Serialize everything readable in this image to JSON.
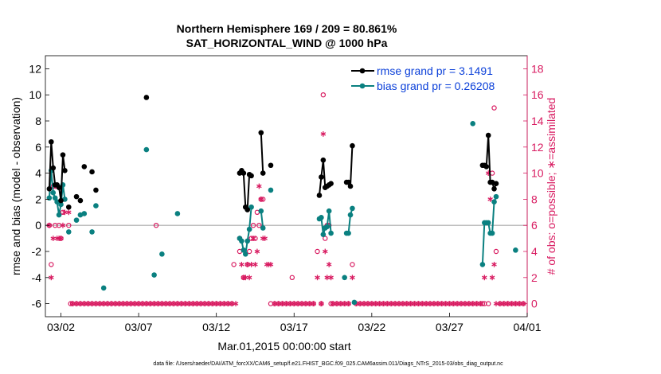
{
  "chart_data": {
    "type": "scatter",
    "title": "Northern Hemisphere 169 / 209 = 80.861%",
    "subtitle": "SAT_HORIZONTAL_WIND @ 1000 hPa",
    "xlabel": "Mar.01,2015 00:00:00 start",
    "ylabel": "rmse and bias (model - observation)",
    "ylabel_right": "# of obs: o=possible; ∗=assimilated",
    "footnote": "data file: /Users/raeder/DAI/ATM_forcXX/CAM6_setup/f.e21.FHIST_BGC.f09_025.CAM6assim.011/Diags_NTrS_2015-03/obs_diag_output.nc",
    "xlim": [
      0.5,
      31.5
    ],
    "ylim": [
      -7,
      13
    ],
    "ylim_right": [
      -1,
      19
    ],
    "x_ticks": [
      1.5,
      6.5,
      11.5,
      16.5,
      21.5,
      26.5,
      31.5
    ],
    "x_tick_labels": [
      "03/02",
      "03/07",
      "03/12",
      "03/17",
      "03/22",
      "03/27",
      "04/01"
    ],
    "y_ticks": [
      -6,
      -4,
      -2,
      0,
      2,
      4,
      6,
      8,
      10,
      12
    ],
    "y_ticks_right": [
      0,
      2,
      4,
      6,
      8,
      10,
      12,
      14,
      16,
      18
    ],
    "zero_line": 0,
    "grid": false,
    "legend": "top-right",
    "colors": {
      "rmse": "#000000",
      "bias": "#0a8080",
      "obs": "#d81a60",
      "zero": "#a8a8a8",
      "legend_text": "#0a3fd9"
    },
    "series": [
      {
        "name": "rmse grand pr = 3.1491",
        "color": "#000000",
        "segments": [
          [
            [
              0.75,
              2.8
            ],
            [
              0.875,
              6.4
            ],
            [
              1.0,
              4.4
            ],
            [
              1.125,
              3.1
            ],
            [
              1.25,
              3.1
            ],
            [
              1.375,
              2.9
            ],
            [
              1.5,
              1.9
            ],
            [
              1.625,
              5.4
            ],
            [
              1.75,
              4.2
            ]
          ],
          [
            [
              13.0,
              4.0
            ],
            [
              13.125,
              4.2
            ],
            [
              13.25,
              4.0
            ],
            [
              13.375,
              1.4
            ],
            [
              13.5,
              1.2
            ],
            [
              13.625,
              3.9
            ],
            [
              13.75,
              3.8
            ]
          ],
          [
            [
              14.375,
              7.1
            ],
            [
              14.5,
              4.0
            ]
          ],
          [
            [
              18.125,
              2.3
            ],
            [
              18.25,
              3.7
            ],
            [
              18.375,
              5.0
            ],
            [
              18.5,
              2.9
            ],
            [
              18.625,
              3.0
            ],
            [
              18.75,
              3.1
            ],
            [
              18.875,
              3.2
            ]
          ],
          [
            [
              19.875,
              3.3
            ],
            [
              20.0,
              3.3
            ],
            [
              20.125,
              3.0
            ],
            [
              20.25,
              6.1
            ]
          ],
          [
            [
              28.625,
              4.6
            ],
            [
              28.75,
              4.6
            ],
            [
              28.875,
              4.5
            ],
            [
              29.0,
              6.9
            ],
            [
              29.125,
              3.3
            ],
            [
              29.25,
              3.3
            ],
            [
              29.375,
              2.8
            ],
            [
              29.5,
              3.2
            ]
          ]
        ],
        "isolated": [
          [
            2.0,
            1.4
          ],
          [
            2.5,
            2.2
          ],
          [
            2.75,
            1.9
          ],
          [
            3.0,
            4.5
          ],
          [
            3.5,
            4.1
          ],
          [
            3.75,
            2.7
          ],
          [
            7.0,
            9.8
          ],
          [
            15.0,
            4.6
          ]
        ]
      },
      {
        "name": "bias grand pr = 0.26208",
        "color": "#0a8080",
        "segments": [
          [
            [
              0.75,
              2.1
            ],
            [
              0.875,
              4.2
            ],
            [
              1.0,
              2.5
            ],
            [
              1.125,
              2.1
            ],
            [
              1.25,
              1.8
            ],
            [
              1.375,
              0.8
            ],
            [
              1.5,
              1.6
            ],
            [
              1.625,
              3.1
            ],
            [
              1.75,
              2.0
            ]
          ],
          [
            [
              13.0,
              -1.0
            ],
            [
              13.125,
              -1.2
            ],
            [
              13.25,
              -1.9
            ],
            [
              13.375,
              -2.2
            ],
            [
              13.5,
              -1.2
            ],
            [
              13.625,
              -0.3
            ],
            [
              13.75,
              1.4
            ]
          ],
          [
            [
              14.375,
              1.1
            ],
            [
              14.5,
              -0.2
            ]
          ],
          [
            [
              18.125,
              0.5
            ],
            [
              18.25,
              0.6
            ],
            [
              18.375,
              -0.7
            ],
            [
              18.5,
              -0.2
            ],
            [
              18.625,
              -0.1
            ],
            [
              18.75,
              1.1
            ],
            [
              18.875,
              -0.6
            ]
          ],
          [
            [
              19.875,
              -0.6
            ],
            [
              20.0,
              -0.6
            ],
            [
              20.125,
              0.8
            ],
            [
              20.25,
              1.3
            ]
          ],
          [
            [
              28.625,
              -3.0
            ],
            [
              28.75,
              0.2
            ],
            [
              28.875,
              0.2
            ],
            [
              29.0,
              0.2
            ],
            [
              29.125,
              -0.6
            ],
            [
              29.25,
              -0.6
            ],
            [
              29.375,
              1.8
            ],
            [
              29.5,
              2.2
            ]
          ]
        ],
        "isolated": [
          [
            2.0,
            -0.5
          ],
          [
            2.5,
            0.4
          ],
          [
            2.75,
            0.8
          ],
          [
            3.0,
            0.9
          ],
          [
            3.5,
            -0.5
          ],
          [
            3.75,
            1.5
          ],
          [
            4.25,
            -4.8
          ],
          [
            7.0,
            5.8
          ],
          [
            7.5,
            -3.8
          ],
          [
            8.0,
            -2.2
          ],
          [
            9.0,
            0.9
          ],
          [
            15.0,
            2.7
          ],
          [
            19.75,
            -4.0
          ],
          [
            20.375,
            -5.9
          ],
          [
            28.0,
            7.8
          ],
          [
            30.75,
            -1.9
          ]
        ]
      }
    ],
    "obs_possible": [
      [
        0.75,
        6
      ],
      [
        0.875,
        3
      ],
      [
        1.0,
        9
      ],
      [
        1.125,
        6
      ],
      [
        1.25,
        9
      ],
      [
        1.375,
        6
      ],
      [
        1.5,
        5
      ],
      [
        1.625,
        7
      ],
      [
        1.75,
        8
      ],
      [
        2.0,
        6
      ],
      [
        2.125,
        0
      ],
      [
        2.25,
        0
      ],
      [
        2.5,
        0
      ],
      [
        2.75,
        0
      ],
      [
        3.0,
        0
      ],
      [
        3.25,
        0
      ],
      [
        3.5,
        0
      ],
      [
        3.75,
        0
      ],
      [
        4.0,
        0
      ],
      [
        4.25,
        0
      ],
      [
        4.5,
        0
      ],
      [
        4.75,
        0
      ],
      [
        5.0,
        0
      ],
      [
        5.25,
        0
      ],
      [
        5.5,
        0
      ],
      [
        5.75,
        0
      ],
      [
        6.0,
        0
      ],
      [
        6.25,
        0
      ],
      [
        6.5,
        0
      ],
      [
        6.75,
        0
      ],
      [
        7.0,
        0
      ],
      [
        7.25,
        0
      ],
      [
        7.5,
        0
      ],
      [
        7.625,
        6
      ],
      [
        7.75,
        0
      ],
      [
        8.0,
        0
      ],
      [
        8.25,
        0
      ],
      [
        8.5,
        0
      ],
      [
        8.75,
        0
      ],
      [
        9.0,
        0
      ],
      [
        9.25,
        0
      ],
      [
        9.5,
        0
      ],
      [
        9.75,
        0
      ],
      [
        10.0,
        0
      ],
      [
        10.25,
        0
      ],
      [
        10.5,
        0
      ],
      [
        10.75,
        0
      ],
      [
        11.0,
        0
      ],
      [
        11.25,
        0
      ],
      [
        11.5,
        0
      ],
      [
        11.75,
        0
      ],
      [
        12.0,
        0
      ],
      [
        12.25,
        0
      ],
      [
        12.5,
        0
      ],
      [
        12.625,
        3
      ],
      [
        13.0,
        4
      ],
      [
        13.25,
        2
      ],
      [
        13.5,
        3
      ],
      [
        13.625,
        4
      ],
      [
        13.75,
        5
      ],
      [
        13.875,
        6
      ],
      [
        14.0,
        5
      ],
      [
        14.125,
        7
      ],
      [
        14.25,
        6
      ],
      [
        14.375,
        8
      ],
      [
        14.5,
        8
      ],
      [
        15.0,
        0
      ],
      [
        15.25,
        0
      ],
      [
        15.5,
        0
      ],
      [
        15.75,
        0
      ],
      [
        16.0,
        0
      ],
      [
        16.25,
        0
      ],
      [
        16.375,
        2
      ],
      [
        16.5,
        0
      ],
      [
        16.75,
        0
      ],
      [
        17.0,
        0
      ],
      [
        17.25,
        0
      ],
      [
        17.5,
        0
      ],
      [
        17.75,
        0
      ],
      [
        18.0,
        4
      ],
      [
        18.25,
        0
      ],
      [
        18.375,
        16
      ],
      [
        18.5,
        5
      ],
      [
        18.625,
        6
      ],
      [
        18.75,
        6
      ],
      [
        18.875,
        0
      ],
      [
        19.0,
        0
      ],
      [
        19.25,
        0
      ],
      [
        19.5,
        0
      ],
      [
        19.75,
        0
      ],
      [
        20.0,
        0
      ],
      [
        20.25,
        3
      ],
      [
        20.5,
        0
      ],
      [
        20.75,
        0
      ],
      [
        21.0,
        0
      ],
      [
        21.25,
        0
      ],
      [
        21.5,
        0
      ],
      [
        21.75,
        0
      ],
      [
        22.0,
        0
      ],
      [
        22.25,
        0
      ],
      [
        22.5,
        0
      ],
      [
        22.75,
        0
      ],
      [
        23.0,
        0
      ],
      [
        23.25,
        0
      ],
      [
        23.5,
        0
      ],
      [
        23.75,
        0
      ],
      [
        24.0,
        0
      ],
      [
        24.25,
        0
      ],
      [
        24.5,
        0
      ],
      [
        24.75,
        0
      ],
      [
        25.0,
        0
      ],
      [
        25.25,
        0
      ],
      [
        25.5,
        0
      ],
      [
        25.75,
        0
      ],
      [
        26.0,
        0
      ],
      [
        26.25,
        0
      ],
      [
        26.5,
        0
      ],
      [
        26.75,
        0
      ],
      [
        27.0,
        0
      ],
      [
        27.25,
        0
      ],
      [
        27.5,
        0
      ],
      [
        27.75,
        0
      ],
      [
        28.0,
        0
      ],
      [
        28.25,
        0
      ],
      [
        28.5,
        0
      ],
      [
        28.625,
        0
      ],
      [
        28.75,
        0
      ],
      [
        29.0,
        0
      ],
      [
        29.25,
        10
      ],
      [
        29.375,
        15
      ],
      [
        29.5,
        4
      ],
      [
        29.75,
        0
      ],
      [
        30.0,
        0
      ],
      [
        30.25,
        0
      ],
      [
        30.5,
        0
      ],
      [
        30.75,
        0
      ],
      [
        31.0,
        0
      ],
      [
        31.25,
        0
      ]
    ],
    "obs_assimilated": [
      [
        0.75,
        6
      ],
      [
        0.875,
        2
      ],
      [
        1.0,
        5
      ],
      [
        1.125,
        9
      ],
      [
        1.25,
        5
      ],
      [
        1.375,
        5
      ],
      [
        1.5,
        5
      ],
      [
        1.625,
        6
      ],
      [
        1.75,
        7
      ],
      [
        2.0,
        7
      ],
      [
        2.25,
        0
      ],
      [
        2.5,
        0
      ],
      [
        2.75,
        0
      ],
      [
        3.0,
        0
      ],
      [
        3.25,
        0
      ],
      [
        3.5,
        0
      ],
      [
        3.75,
        0
      ],
      [
        4.0,
        0
      ],
      [
        4.25,
        0
      ],
      [
        4.5,
        0
      ],
      [
        4.75,
        0
      ],
      [
        5.0,
        0
      ],
      [
        5.25,
        0
      ],
      [
        5.5,
        0
      ],
      [
        5.75,
        0
      ],
      [
        6.0,
        0
      ],
      [
        6.25,
        0
      ],
      [
        6.5,
        0
      ],
      [
        6.75,
        0
      ],
      [
        7.0,
        0
      ],
      [
        7.25,
        0
      ],
      [
        7.5,
        0
      ],
      [
        7.75,
        0
      ],
      [
        8.0,
        0
      ],
      [
        8.25,
        0
      ],
      [
        8.5,
        0
      ],
      [
        8.75,
        0
      ],
      [
        9.0,
        0
      ],
      [
        9.25,
        0
      ],
      [
        9.5,
        0
      ],
      [
        9.75,
        0
      ],
      [
        10.0,
        0
      ],
      [
        10.25,
        0
      ],
      [
        10.5,
        0
      ],
      [
        10.75,
        0
      ],
      [
        11.0,
        0
      ],
      [
        11.25,
        0
      ],
      [
        11.5,
        0
      ],
      [
        11.75,
        0
      ],
      [
        12.0,
        0
      ],
      [
        12.25,
        0
      ],
      [
        12.5,
        0
      ],
      [
        12.75,
        0
      ],
      [
        13.0,
        5
      ],
      [
        13.125,
        3
      ],
      [
        13.25,
        2
      ],
      [
        13.375,
        2
      ],
      [
        13.5,
        3
      ],
      [
        13.625,
        2
      ],
      [
        13.75,
        3
      ],
      [
        13.875,
        5
      ],
      [
        14.0,
        3
      ],
      [
        14.125,
        4
      ],
      [
        14.25,
        9
      ],
      [
        14.375,
        8
      ],
      [
        14.5,
        5
      ],
      [
        14.625,
        5
      ],
      [
        14.75,
        3
      ],
      [
        14.875,
        3
      ],
      [
        15.0,
        3
      ],
      [
        15.25,
        0
      ],
      [
        15.5,
        0
      ],
      [
        15.75,
        0
      ],
      [
        16.0,
        0
      ],
      [
        16.25,
        0
      ],
      [
        16.5,
        0
      ],
      [
        16.75,
        0
      ],
      [
        17.0,
        0
      ],
      [
        17.25,
        0
      ],
      [
        17.5,
        0
      ],
      [
        17.75,
        0
      ],
      [
        18.0,
        2
      ],
      [
        18.25,
        0
      ],
      [
        18.375,
        13
      ],
      [
        18.5,
        4
      ],
      [
        18.625,
        2
      ],
      [
        18.75,
        3
      ],
      [
        18.875,
        2
      ],
      [
        19.0,
        0
      ],
      [
        19.25,
        0
      ],
      [
        19.5,
        0
      ],
      [
        19.75,
        0
      ],
      [
        20.0,
        0
      ],
      [
        20.25,
        2
      ],
      [
        20.5,
        0
      ],
      [
        20.75,
        0
      ],
      [
        21.0,
        0
      ],
      [
        21.25,
        0
      ],
      [
        21.5,
        0
      ],
      [
        21.75,
        0
      ],
      [
        22.0,
        0
      ],
      [
        22.25,
        0
      ],
      [
        22.5,
        0
      ],
      [
        22.75,
        0
      ],
      [
        23.0,
        0
      ],
      [
        23.25,
        0
      ],
      [
        23.5,
        0
      ],
      [
        23.75,
        0
      ],
      [
        24.0,
        0
      ],
      [
        24.25,
        0
      ],
      [
        24.5,
        0
      ],
      [
        24.75,
        0
      ],
      [
        25.0,
        0
      ],
      [
        25.25,
        0
      ],
      [
        25.5,
        0
      ],
      [
        25.75,
        0
      ],
      [
        26.0,
        0
      ],
      [
        26.25,
        0
      ],
      [
        26.5,
        0
      ],
      [
        26.75,
        0
      ],
      [
        27.0,
        0
      ],
      [
        27.25,
        0
      ],
      [
        27.5,
        0
      ],
      [
        27.75,
        0
      ],
      [
        28.0,
        0
      ],
      [
        28.25,
        0
      ],
      [
        28.5,
        0
      ],
      [
        28.75,
        2
      ],
      [
        29.0,
        10
      ],
      [
        29.125,
        8
      ],
      [
        29.25,
        2
      ],
      [
        29.375,
        3
      ],
      [
        29.5,
        0
      ],
      [
        29.75,
        0
      ],
      [
        30.0,
        0
      ],
      [
        30.25,
        0
      ],
      [
        30.5,
        0
      ],
      [
        30.75,
        0
      ],
      [
        31.0,
        0
      ],
      [
        31.25,
        0
      ]
    ]
  }
}
